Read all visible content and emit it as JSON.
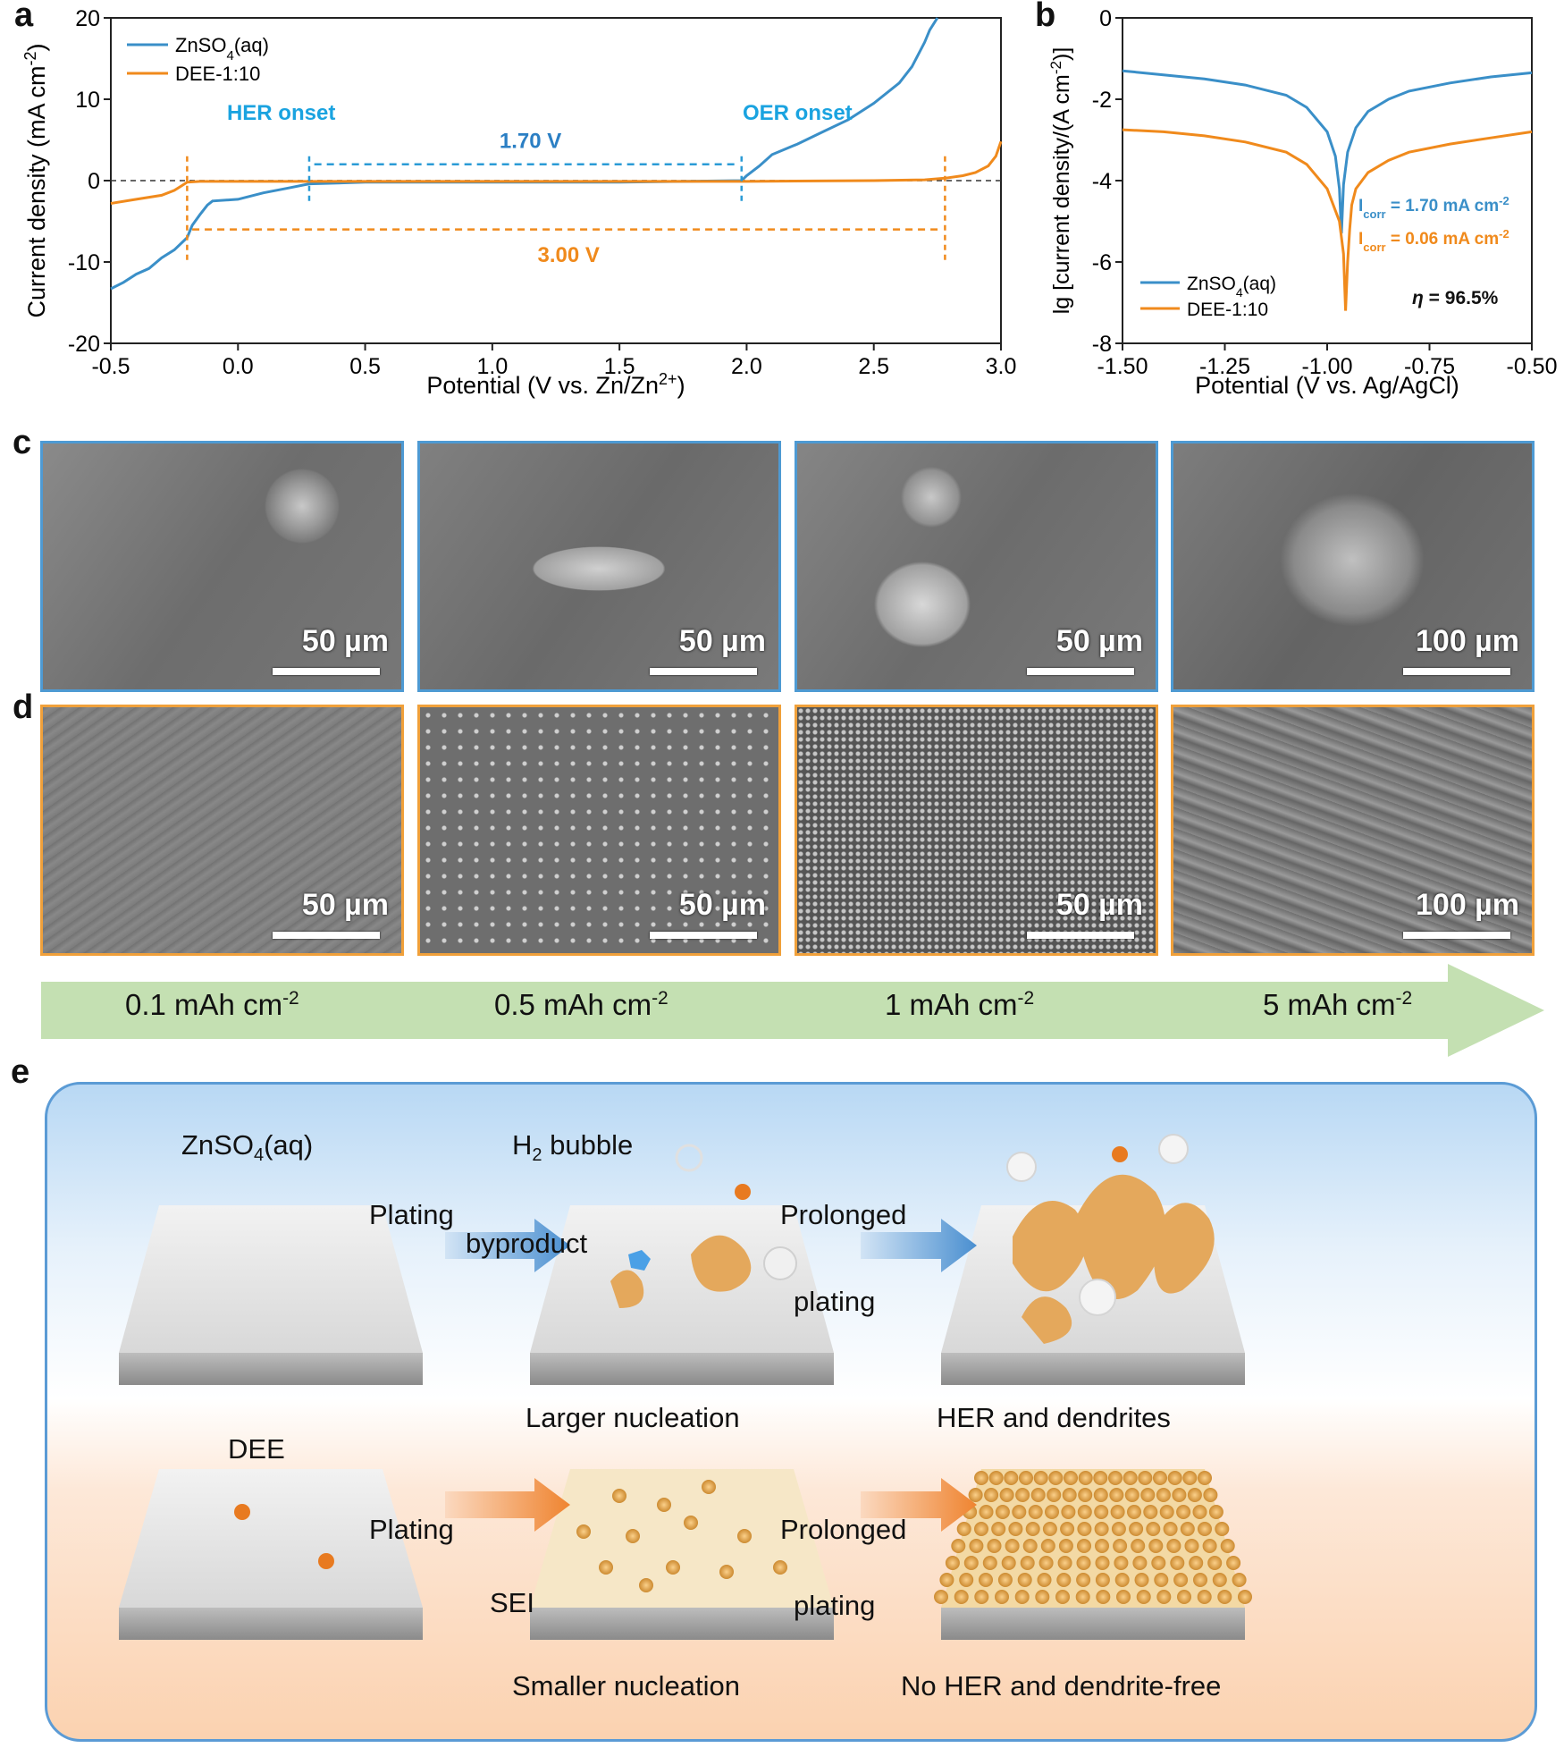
{
  "panel_labels": {
    "a": "a",
    "b": "b",
    "c": "c",
    "d": "d",
    "e": "e"
  },
  "chart_data": [
    {
      "type": "line",
      "panel": "a",
      "xlabel": "Potential (V vs. Zn/Zn",
      "xlabel_sup": "2+",
      "xlabel_end": ")",
      "ylabel": "Current density (mA cm",
      "ylabel_sup": "-2",
      "ylabel_end": ")",
      "xlim": [
        -0.5,
        3.0
      ],
      "ylim": [
        -20,
        20
      ],
      "xticks": [
        "-0.5",
        "0.0",
        "0.5",
        "1.0",
        "1.5",
        "2.0",
        "2.5",
        "3.0"
      ],
      "yticks": [
        "-20",
        "-10",
        "0",
        "10",
        "20"
      ],
      "legend": [
        "ZnSO",
        "DEE-1:10"
      ],
      "legend_zn_sub": "4",
      "legend_zn_end": "(aq)",
      "series": [
        {
          "name": "ZnSO4(aq)",
          "color": "#3a8fc8",
          "x": [
            -0.5,
            -0.45,
            -0.4,
            -0.35,
            -0.3,
            -0.25,
            -0.2,
            -0.18,
            -0.15,
            -0.12,
            -0.1,
            0.0,
            0.1,
            0.2,
            0.28,
            0.5,
            1.0,
            1.5,
            1.98,
            2.0,
            2.05,
            2.1,
            2.2,
            2.3,
            2.4,
            2.5,
            2.6,
            2.65,
            2.7,
            2.72,
            2.74,
            2.75
          ],
          "y": [
            -13.3,
            -12.5,
            -11.5,
            -10.8,
            -9.5,
            -8.5,
            -7.0,
            -5.5,
            -4.2,
            -3.0,
            -2.5,
            -2.3,
            -1.5,
            -0.9,
            -0.4,
            -0.2,
            -0.2,
            -0.2,
            0.0,
            0.6,
            1.8,
            3.2,
            4.5,
            6.0,
            7.5,
            9.5,
            12.0,
            14.0,
            17.0,
            18.5,
            19.5,
            20.0
          ]
        },
        {
          "name": "DEE-1:10",
          "color": "#f08a1c",
          "x": [
            -0.5,
            -0.4,
            -0.3,
            -0.25,
            -0.22,
            -0.2,
            -0.15,
            0.0,
            0.5,
            1.0,
            1.5,
            2.0,
            2.5,
            2.7,
            2.78,
            2.85,
            2.9,
            2.95,
            2.98,
            3.0
          ],
          "y": [
            -2.8,
            -2.3,
            -1.8,
            -1.2,
            -0.6,
            -0.2,
            -0.1,
            -0.1,
            -0.1,
            -0.1,
            -0.1,
            -0.1,
            0.0,
            0.1,
            0.3,
            0.6,
            1.0,
            1.8,
            3.0,
            4.8
          ]
        }
      ],
      "annotations": {
        "her": "HER onset",
        "oer": "OER onset",
        "window_zn": "1.70 V",
        "window_dee": "3.00 V"
      }
    },
    {
      "type": "line",
      "panel": "b",
      "xlabel": "Potential (V vs. Ag/AgCl)",
      "ylabel": "lg [current density/(A cm",
      "ylabel_sup": "-2",
      "ylabel_end": ")]",
      "xlim": [
        -1.5,
        -0.5
      ],
      "ylim": [
        -8,
        0
      ],
      "xticks": [
        "-1.50",
        "-1.25",
        "-1.00",
        "-0.75",
        "-0.50"
      ],
      "yticks": [
        "0",
        "-2",
        "-4",
        "-6",
        "-8"
      ],
      "legend": [
        "ZnSO",
        "DEE-1:10"
      ],
      "legend_zn_sub": "4",
      "legend_zn_end": "(aq)",
      "series": [
        {
          "name": "ZnSO4(aq)",
          "color": "#3a8fc8",
          "x": [
            -1.5,
            -1.4,
            -1.3,
            -1.2,
            -1.1,
            -1.05,
            -1.0,
            -0.98,
            -0.97,
            -0.965,
            -0.96,
            -0.95,
            -0.93,
            -0.9,
            -0.85,
            -0.8,
            -0.7,
            -0.6,
            -0.5
          ],
          "y": [
            -1.3,
            -1.4,
            -1.5,
            -1.65,
            -1.9,
            -2.2,
            -2.8,
            -3.4,
            -4.2,
            -5.3,
            -4.1,
            -3.3,
            -2.7,
            -2.3,
            -2.0,
            -1.8,
            -1.6,
            -1.45,
            -1.35
          ]
        },
        {
          "name": "DEE-1:10",
          "color": "#f08a1c",
          "x": [
            -1.5,
            -1.4,
            -1.3,
            -1.2,
            -1.1,
            -1.05,
            -1.0,
            -0.97,
            -0.96,
            -0.955,
            -0.95,
            -0.945,
            -0.94,
            -0.93,
            -0.9,
            -0.85,
            -0.8,
            -0.7,
            -0.6,
            -0.5
          ],
          "y": [
            -2.75,
            -2.8,
            -2.9,
            -3.05,
            -3.3,
            -3.6,
            -4.2,
            -5.0,
            -5.8,
            -7.2,
            -6.0,
            -5.2,
            -4.6,
            -4.2,
            -3.8,
            -3.5,
            -3.3,
            -3.1,
            -2.95,
            -2.8
          ]
        }
      ],
      "annotations": {
        "icorr_zn_pre": "I",
        "icorr_sub": "corr",
        "icorr_zn_post": " = 1.70 mA cm",
        "icorr_sup": "-2",
        "icorr_dee_post": " = 0.06 mA cm",
        "eta_symbol": "η",
        "eta_value": " = 96.5%"
      }
    }
  ],
  "sem": {
    "row_c": [
      "50 µm",
      "50 µm",
      "50 µm",
      "100 µm"
    ],
    "row_d": [
      "50 µm",
      "50 µm",
      "50 µm",
      "100 µm"
    ]
  },
  "capacity_arrow": {
    "items": [
      {
        "value": "0.1 mAh cm",
        "sup": "-2"
      },
      {
        "value": "0.5 mAh cm",
        "sup": "-2"
      },
      {
        "value": "1 mAh cm",
        "sup": "-2"
      },
      {
        "value": "5 mAh cm",
        "sup": "-2"
      }
    ]
  },
  "schematic": {
    "zn_label": "ZnSO",
    "zn_sub": "4",
    "zn_end": "(aq)",
    "dee_label": "DEE",
    "h2_pre": "H",
    "h2_sub": "2",
    "h2_post": " bubble",
    "byproduct": "byproduct",
    "sei": "SEI",
    "plating": "Plating",
    "prolonged": "Prolonged",
    "plating2": "plating",
    "larger": "Larger nucleation",
    "her_dendrites": "HER and dendrites",
    "smaller": "Smaller nucleation",
    "no_her": "No HER and dendrite-free"
  },
  "colors": {
    "zn": "#3a8fc8",
    "dee": "#f08a1c",
    "arrow_green": "#c4e0b2"
  }
}
